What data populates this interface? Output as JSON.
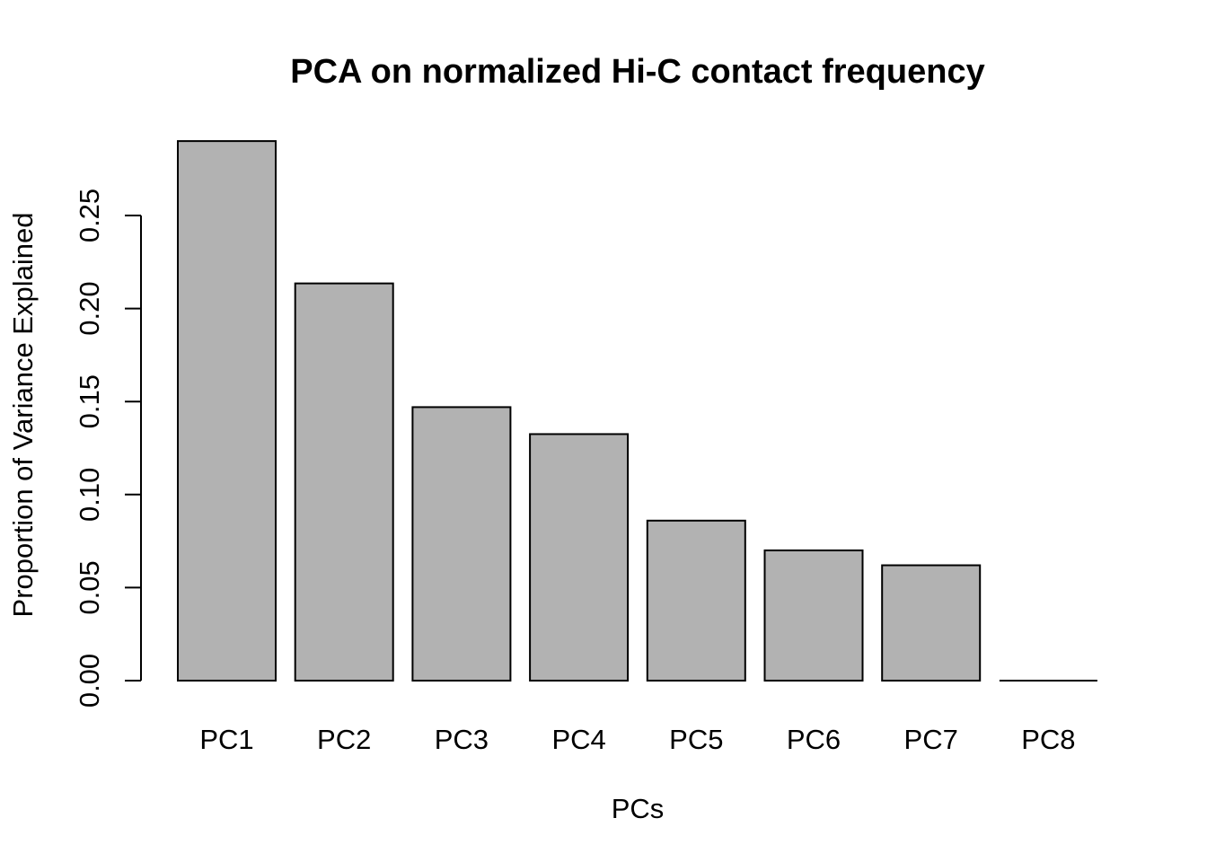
{
  "chart_data": {
    "type": "bar",
    "title": "PCA on normalized Hi-C contact frequency",
    "xlabel": "PCs",
    "ylabel": "Proportion of Variance Explained",
    "categories": [
      "PC1",
      "PC2",
      "PC3",
      "PC4",
      "PC5",
      "PC6",
      "PC7",
      "PC8"
    ],
    "values": [
      0.29,
      0.2135,
      0.147,
      0.1325,
      0.086,
      0.07,
      0.062,
      0.0
    ],
    "ylim": [
      0,
      0.29
    ],
    "yticks": [
      0.0,
      0.05,
      0.1,
      0.15,
      0.2,
      0.25
    ],
    "ytick_labels": [
      "0.00",
      "0.05",
      "0.10",
      "0.15",
      "0.20",
      "0.25"
    ],
    "bar_color": "#b2b2b2",
    "grid": false,
    "legend": "none"
  }
}
